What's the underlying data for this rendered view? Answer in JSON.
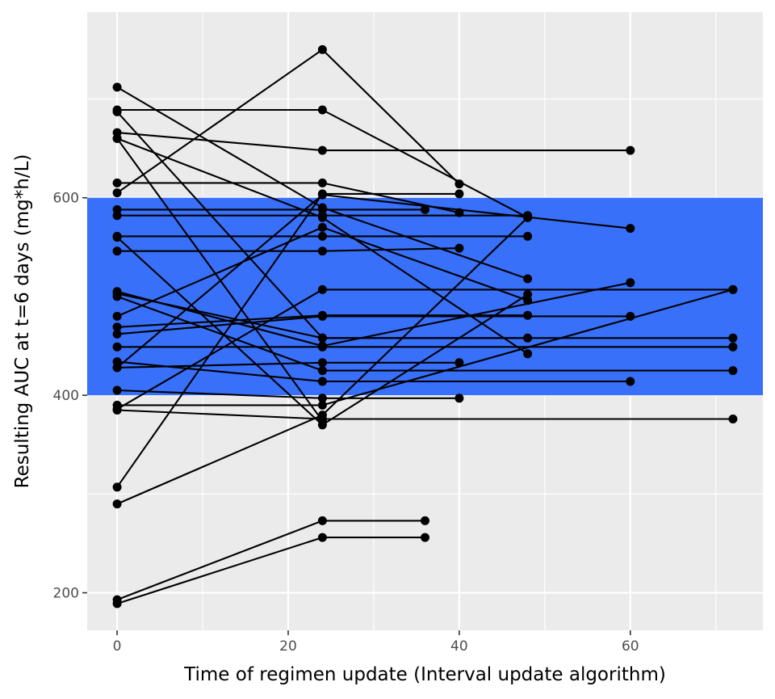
{
  "chart_data": {
    "type": "line",
    "xlabel": "Time of regimen update (Interval update algorithm)",
    "ylabel": "Resulting AUC at t=6 days (mg*h/L)",
    "xlim": [
      -3.5,
      75.5
    ],
    "ylim": [
      162,
      788
    ],
    "x_ticks": [
      0,
      20,
      40,
      60
    ],
    "y_ticks": [
      200,
      400,
      600
    ],
    "grid": true,
    "target_band": {
      "ymin": 400,
      "ymax": 600,
      "color": "#3870FA"
    },
    "colors": {
      "panel": "#EBEBEB",
      "grid": "#FFFFFF",
      "line": "#000000",
      "point": "#000000"
    },
    "series": [
      {
        "x": [
          0,
          24,
          40
        ],
        "y": [
          605,
          750,
          614
        ]
      },
      {
        "x": [
          0,
          24,
          48
        ],
        "y": [
          712,
          590,
          518
        ]
      },
      {
        "x": [
          0,
          24,
          48
        ],
        "y": [
          689,
          689,
          580
        ]
      },
      {
        "x": [
          0,
          24,
          48
        ],
        "y": [
          687,
          458,
          458
        ]
      },
      {
        "x": [
          0,
          24,
          60
        ],
        "y": [
          666,
          648,
          648
        ]
      },
      {
        "x": [
          0,
          24,
          48
        ],
        "y": [
          660,
          580,
          442
        ]
      },
      {
        "x": [
          0,
          24
        ],
        "y": [
          660,
          374
        ]
      },
      {
        "x": [
          0,
          24,
          40
        ],
        "y": [
          615,
          615,
          585
        ]
      },
      {
        "x": [
          0,
          24,
          36
        ],
        "y": [
          588,
          588,
          588
        ]
      },
      {
        "x": [
          0,
          24,
          48
        ],
        "y": [
          582,
          582,
          582
        ]
      },
      {
        "x": [
          0,
          24,
          48
        ],
        "y": [
          561,
          561,
          561
        ]
      },
      {
        "x": [
          0,
          24,
          40
        ],
        "y": [
          546,
          546,
          549
        ]
      },
      {
        "x": [
          0,
          24,
          72
        ],
        "y": [
          503,
          458,
          458
        ]
      },
      {
        "x": [
          0,
          24,
          72
        ],
        "y": [
          500,
          425,
          425
        ]
      },
      {
        "x": [
          0,
          24,
          48
        ],
        "y": [
          480,
          570,
          496
        ]
      },
      {
        "x": [
          0,
          24,
          48
        ],
        "y": [
          469,
          481,
          481
        ]
      },
      {
        "x": [
          0,
          24,
          60
        ],
        "y": [
          462,
          480,
          480
        ]
      },
      {
        "x": [
          0,
          24,
          72
        ],
        "y": [
          449,
          449,
          449
        ]
      },
      {
        "x": [
          0,
          24,
          60
        ],
        "y": [
          434,
          414,
          414
        ]
      },
      {
        "x": [
          0,
          24,
          60
        ],
        "y": [
          428,
          603,
          569
        ]
      },
      {
        "x": [
          0,
          24,
          40
        ],
        "y": [
          428,
          433,
          433
        ]
      },
      {
        "x": [
          0,
          24,
          40
        ],
        "y": [
          405,
          397,
          397
        ]
      },
      {
        "x": [
          0,
          24,
          72
        ],
        "y": [
          390,
          390,
          507
        ]
      },
      {
        "x": [
          0,
          24,
          72
        ],
        "y": [
          385,
          376,
          376
        ]
      },
      {
        "x": [
          0,
          24,
          72
        ],
        "y": [
          386,
          507,
          507
        ]
      },
      {
        "x": [
          0,
          24,
          40
        ],
        "y": [
          307,
          604,
          604
        ]
      },
      {
        "x": [
          0,
          24,
          48
        ],
        "y": [
          290,
          380,
          580
        ]
      },
      {
        "x": [
          0,
          24,
          48
        ],
        "y": [
          560,
          370,
          502
        ]
      },
      {
        "x": [
          0,
          24,
          60
        ],
        "y": [
          505,
          450,
          514
        ]
      },
      {
        "x": [
          0,
          24,
          36
        ],
        "y": [
          193,
          273,
          273
        ]
      },
      {
        "x": [
          0,
          24,
          36
        ],
        "y": [
          189,
          256,
          256
        ]
      }
    ]
  }
}
